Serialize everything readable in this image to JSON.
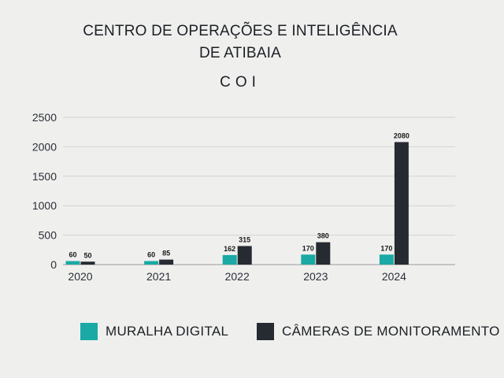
{
  "header": {
    "title_line1": "CENTRO DE OPERAÇÕES E INTELIGÊNCIA",
    "title_line2": "DE ATIBAIA",
    "subtitle": "COI"
  },
  "colors": {
    "muralha": "#1aa9a4",
    "cameras": "#262a31",
    "grid": "#d2d2d2",
    "text": "#2b2f36"
  },
  "legend": {
    "items": [
      {
        "label": "MURALHA DIGITAL",
        "color": "#1aa9a4"
      },
      {
        "label": "CÂMERAS DE MONITORAMENTO",
        "color": "#262a31"
      }
    ],
    "position": "bottom"
  },
  "chart_data": {
    "type": "bar",
    "title": "CENTRO DE OPERAÇÕES E INTELIGÊNCIA DE ATIBAIA",
    "subtitle": "COI",
    "categories": [
      "2020",
      "2021",
      "2022",
      "2023",
      "2024"
    ],
    "series": [
      {
        "name": "MURALHA DIGITAL",
        "values": [
          60,
          60,
          162,
          170,
          170
        ]
      },
      {
        "name": "CÂMERAS DE MONITORAMENTO",
        "values": [
          50,
          85,
          315,
          380,
          2080
        ]
      }
    ],
    "ylim": [
      0,
      2500
    ],
    "yticks": [
      0,
      500,
      1000,
      1500,
      2000,
      2500
    ],
    "grid": true,
    "data_labels": true
  }
}
